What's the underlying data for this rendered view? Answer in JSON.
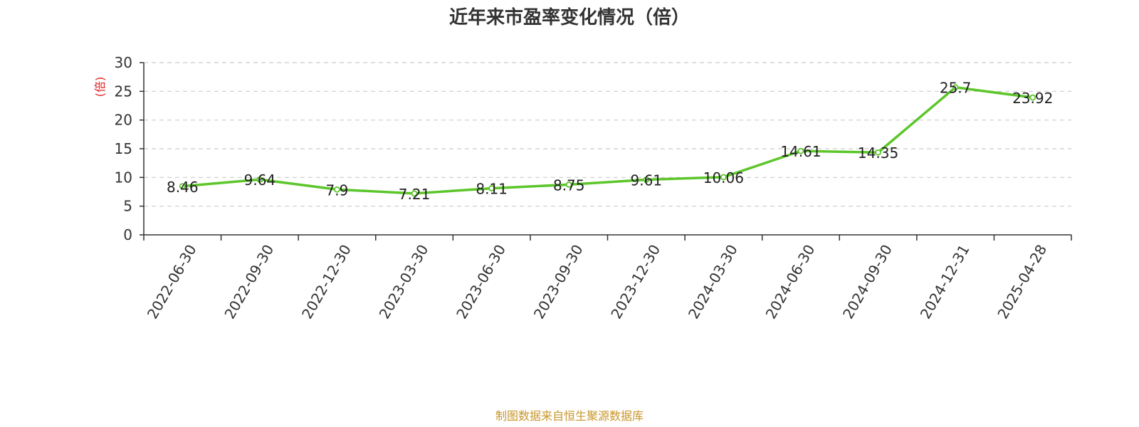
{
  "chart_data": {
    "type": "line",
    "title": "近年来市盈率变化情况（倍）",
    "xlabel": "",
    "ylabel": "(倍)",
    "categories": [
      "2022-06-30",
      "2022-09-30",
      "2022-12-30",
      "2023-03-30",
      "2023-06-30",
      "2023-09-30",
      "2023-12-30",
      "2024-03-30",
      "2024-06-30",
      "2024-09-30",
      "2024-12-31",
      "2025-04-28"
    ],
    "values": [
      8.46,
      9.64,
      7.9,
      7.21,
      8.11,
      8.75,
      9.61,
      10.06,
      14.61,
      14.35,
      25.7,
      23.92
    ],
    "ylim": [
      0,
      30
    ],
    "yticks": [
      0,
      5,
      10,
      15,
      20,
      25,
      30
    ],
    "grid": true,
    "legend": "none",
    "line_color": "#5cc62a",
    "grid_color": "#cccccc",
    "axis_color": "#333333"
  },
  "footer": {
    "source_text": "制图数据来自恒生聚源数据库",
    "source_color": "#c8962a"
  }
}
